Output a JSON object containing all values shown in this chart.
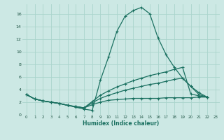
{
  "xlabel": "Humidex (Indice chaleur)",
  "bg_color": "#cce8e4",
  "line_color": "#1a7060",
  "grid_color": "#aad4cc",
  "ylim": [
    0,
    17.5
  ],
  "xlim": [
    -0.5,
    23.5
  ],
  "yticks": [
    0,
    2,
    4,
    6,
    8,
    10,
    12,
    14,
    16
  ],
  "xticks": [
    0,
    1,
    2,
    3,
    4,
    5,
    6,
    7,
    8,
    9,
    10,
    11,
    12,
    13,
    14,
    15,
    16,
    17,
    18,
    19,
    20,
    21,
    22,
    23
  ],
  "series": [
    [
      3.2,
      2.5,
      2.2,
      2.0,
      1.8,
      1.5,
      1.2,
      0.9,
      0.7,
      5.5,
      9.2,
      13.2,
      15.6,
      16.5,
      17.0,
      16.0,
      12.2,
      9.5,
      7.5,
      5.8,
      4.5,
      3.2,
      2.8
    ],
    [
      3.2,
      2.5,
      2.2,
      2.0,
      1.8,
      1.5,
      1.3,
      1.1,
      2.1,
      3.1,
      3.8,
      4.4,
      4.9,
      5.4,
      5.8,
      6.2,
      6.5,
      6.8,
      7.2,
      7.5,
      3.3,
      3.0,
      2.8
    ],
    [
      3.2,
      2.5,
      2.2,
      2.0,
      1.8,
      1.5,
      1.3,
      1.1,
      1.9,
      2.6,
      3.1,
      3.5,
      3.9,
      4.2,
      4.5,
      4.8,
      5.0,
      5.3,
      5.6,
      5.8,
      4.5,
      3.5,
      2.8
    ],
    [
      3.2,
      2.5,
      2.2,
      2.0,
      1.8,
      1.5,
      1.3,
      1.1,
      1.6,
      2.0,
      2.3,
      2.4,
      2.5,
      2.6,
      2.6,
      2.6,
      2.6,
      2.7,
      2.7,
      2.7,
      2.7,
      2.8,
      2.8
    ]
  ]
}
